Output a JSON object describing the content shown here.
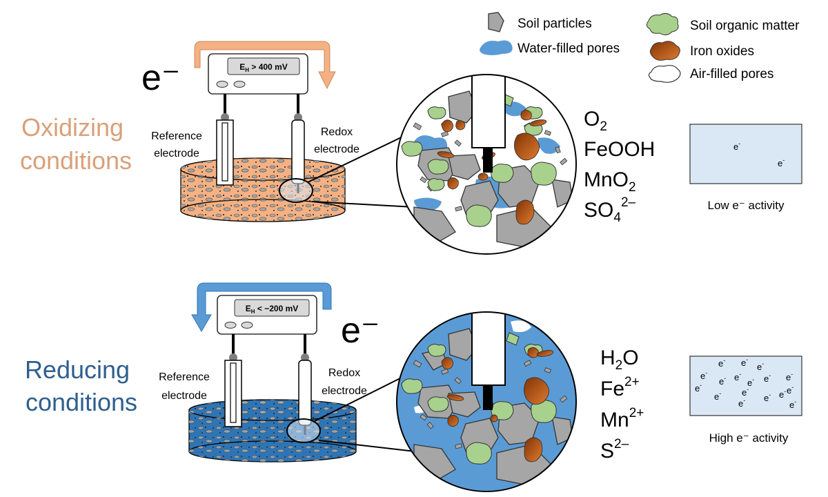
{
  "legend": {
    "soil_particles": "Soil particles",
    "water_filled_pores": "Water-filled pores",
    "soil_organic_matter": "Soil organic matter",
    "iron_oxides": "Iron oxides",
    "air_filled_pores": "Air-filled pores"
  },
  "oxidizing": {
    "title_line1": "Oxidizing",
    "title_line2": "conditions",
    "electron": "e⁻",
    "meter_sub": "H",
    "meter_value": " > 400 mV",
    "reference_line1": "Reference",
    "reference_line2": "electrode",
    "redox_line1": "Redox",
    "redox_line2": "electrode",
    "species": [
      {
        "base": "O",
        "sub": "2",
        "sup": ""
      },
      {
        "base": "FeOOH",
        "sub": "",
        "sup": ""
      },
      {
        "base": "MnO",
        "sub": "2",
        "sup": ""
      },
      {
        "base": "SO",
        "sub": "4",
        "sup": "2–"
      }
    ],
    "activity_label": "Low e⁻ activity"
  },
  "reducing": {
    "title_line1": "Reducing",
    "title_line2": "conditions",
    "electron": "e⁻",
    "meter_sub": "H",
    "meter_value": " < −200 mV",
    "reference_line1": "Reference",
    "reference_line2": "electrode",
    "redox_line1": "Redox",
    "redox_line2": "electrode",
    "species": [
      {
        "base": "H",
        "sub": "2",
        "sup": "",
        "tail": "O"
      },
      {
        "base": "Fe",
        "sub": "",
        "sup": "2+"
      },
      {
        "base": "Mn",
        "sub": "",
        "sup": "2+"
      },
      {
        "base": "S",
        "sub": "",
        "sup": "2–"
      }
    ],
    "activity_label": "High e⁻ activity"
  },
  "electron_symbol": "e",
  "electron_sup": "-",
  "colors": {
    "oxidizing_title": "#d9a07a",
    "oxidizing_arrow": "#f4b183",
    "oxidizing_soil": "#f4b183",
    "reducing_title": "#2e5f8e",
    "reducing_arrow": "#5b9bd5",
    "reducing_soil": "#2e75b6",
    "water": "#5b9bd5",
    "particle": "#a6a6a6",
    "organic": "#a9d18e",
    "iron": "#c55a11",
    "box_fill": "#dae8f6"
  }
}
